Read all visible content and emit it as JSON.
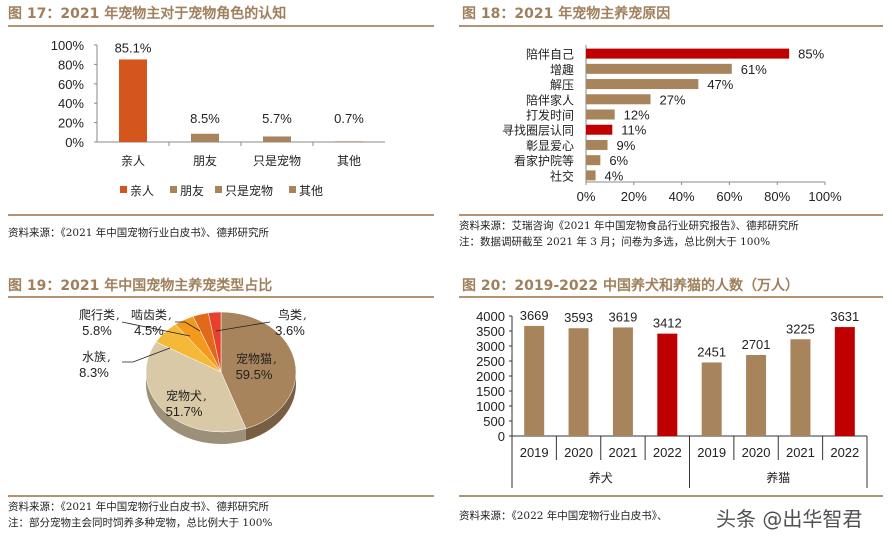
{
  "colors": {
    "tan": "#a8845c",
    "orange": "#d4561c",
    "red": "#c00000",
    "title": "#a0805c",
    "rule": "#b39374"
  },
  "chart_data": [
    {
      "type": "bar",
      "title": "图 17：2021 年宠物主对于宠物角色的认知",
      "categories": [
        "亲人",
        "朋友",
        "只是宠物",
        "其他"
      ],
      "values": [
        85.1,
        8.5,
        5.7,
        0.7
      ],
      "data_labels": [
        "85.1%",
        "8.5%",
        "5.7%",
        "0.7%"
      ],
      "yticks": [
        "0%",
        "20%",
        "40%",
        "60%",
        "80%",
        "100%"
      ],
      "ylim": [
        0,
        100
      ],
      "legend": [
        "亲人",
        "朋友",
        "只是宠物",
        "其他"
      ],
      "legend_position": "bottom",
      "bar_colors": [
        "#d4561c",
        "#a8845c",
        "#a8845c",
        "#a8845c"
      ],
      "source": "资料来源：《2021 年中国宠物行业白皮书》、德邦研究所"
    },
    {
      "type": "bar",
      "orientation": "horizontal",
      "title": "图 18：2021 年宠物主养宠原因",
      "categories": [
        "陪伴自己",
        "增趣",
        "解压",
        "陪伴家人",
        "打发时间",
        "寻找圈层认同",
        "彰显爱心",
        "看家护院等",
        "社交"
      ],
      "values": [
        85,
        61,
        47,
        27,
        12,
        11,
        9,
        6,
        4
      ],
      "data_labels": [
        "85%",
        "61%",
        "47%",
        "27%",
        "12%",
        "11%",
        "9%",
        "6%",
        "4%"
      ],
      "xticks": [
        "0%",
        "20%",
        "40%",
        "60%",
        "80%",
        "100%"
      ],
      "xlim": [
        0,
        100
      ],
      "bar_colors": [
        "#c00000",
        "#a8845c",
        "#a8845c",
        "#a8845c",
        "#a8845c",
        "#c00000",
        "#a8845c",
        "#a8845c",
        "#a8845c"
      ],
      "source": "资料来源：艾瑞咨询《2021 年中国宠物食品行业研究报告》、德邦研究所",
      "note": "注：数据调研截至 2021 年 3 月；问卷为多选，总比例大于 100%"
    },
    {
      "type": "pie",
      "title": "图 19：2021 年中国宠物主养宠类型占比",
      "slices": [
        {
          "name": "宠物猫",
          "value": 59.5,
          "label": "59.5%",
          "color": "#a8845c"
        },
        {
          "name": "宠物犬",
          "value": 51.7,
          "label": "51.7%",
          "color": "#d9c9a6"
        },
        {
          "name": "水族",
          "value": 8.3,
          "label": "8.3%",
          "color": "#f5b93a"
        },
        {
          "name": "爬行类",
          "value": 5.8,
          "label": "5.8%",
          "color": "#f39a1c"
        },
        {
          "name": "啮齿类",
          "value": 4.5,
          "label": "4.5%",
          "color": "#e06a1a"
        },
        {
          "name": "鸟类",
          "value": 3.6,
          "label": "3.6%",
          "color": "#e8402a"
        }
      ],
      "source": "资料来源：《2021 年中国宠物行业白皮书》、德邦研究所",
      "note": "注：部分宠物主会同时饲养多种宠物，总比例大于 100%"
    },
    {
      "type": "bar",
      "title": "图 20：2019-2022 中国养犬和养猫的人数（万人）",
      "groups": [
        {
          "name": "养犬",
          "categories": [
            "2019",
            "2020",
            "2021",
            "2022"
          ],
          "values": [
            3669,
            3593,
            3619,
            3412
          ]
        },
        {
          "name": "养猫",
          "categories": [
            "2019",
            "2020",
            "2021",
            "2022"
          ],
          "values": [
            2451,
            2701,
            3225,
            3631
          ]
        }
      ],
      "data_labels": [
        "3669",
        "3593",
        "3619",
        "3412",
        "2451",
        "2701",
        "3225",
        "3631"
      ],
      "yticks": [
        "0",
        "500",
        "1000",
        "1500",
        "2000",
        "2500",
        "3000",
        "3500",
        "4000"
      ],
      "ylim": [
        0,
        4000
      ],
      "bar_colors": [
        "#a8845c",
        "#a8845c",
        "#a8845c",
        "#c00000",
        "#a8845c",
        "#a8845c",
        "#a8845c",
        "#c00000"
      ],
      "source": "资料来源：《2022 年中国宠物行业白皮书》、"
    }
  ],
  "watermark": "头条 @出华智君"
}
